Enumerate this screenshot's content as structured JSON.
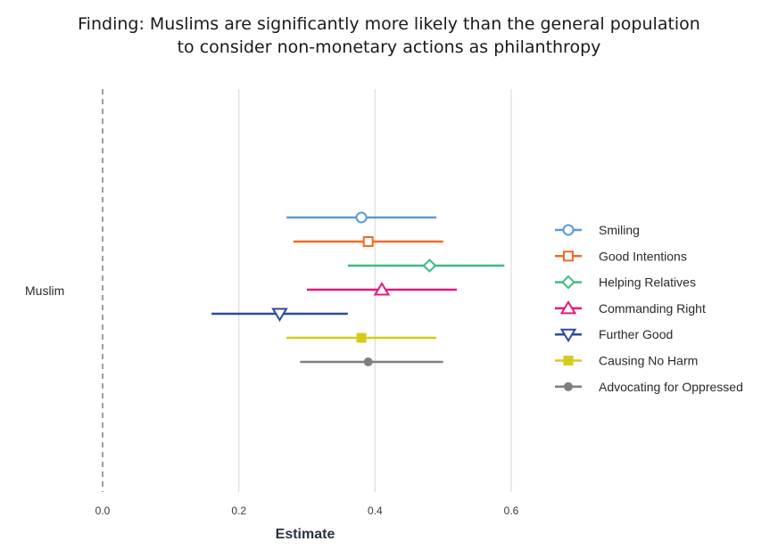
{
  "chart_data": {
    "type": "coefficient-plot",
    "title_lines": [
      "Finding: Muslims are significantly more likely than the general population",
      "to consider non-monetary actions as philanthropy"
    ],
    "xlabel": "Estimate",
    "ylabel": "",
    "category": "Muslim",
    "xlim": [
      0.0,
      0.6
    ],
    "xticks": [
      0.0,
      0.2,
      0.4,
      0.6
    ],
    "xtick_labels": [
      "0.0",
      "0.2",
      "0.4",
      "0.6"
    ],
    "reference_line": 0.0,
    "legend_position": "right",
    "series": [
      {
        "name": "Smiling",
        "estimate": 0.38,
        "low": 0.27,
        "high": 0.49,
        "color": "#5b9bd5",
        "marker": "circle-open"
      },
      {
        "name": "Good Intentions",
        "estimate": 0.39,
        "low": 0.28,
        "high": 0.5,
        "color": "#ed6b27",
        "marker": "square-open"
      },
      {
        "name": "Helping Relatives",
        "estimate": 0.48,
        "low": 0.36,
        "high": 0.59,
        "color": "#3fbb7f",
        "marker": "diamond-open"
      },
      {
        "name": "Commanding Right",
        "estimate": 0.41,
        "low": 0.3,
        "high": 0.52,
        "color": "#e8177b",
        "marker": "triangle-up-open"
      },
      {
        "name": "Further Good",
        "estimate": 0.26,
        "low": 0.16,
        "high": 0.36,
        "color": "#2e4a9c",
        "marker": "triangle-down-open"
      },
      {
        "name": "Causing No Harm",
        "estimate": 0.38,
        "low": 0.27,
        "high": 0.49,
        "color": "#d6cb1c",
        "marker": "square-filled"
      },
      {
        "name": "Advocating for Oppressed",
        "estimate": 0.39,
        "low": 0.29,
        "high": 0.5,
        "color": "#7f7f7f",
        "marker": "circle-filled"
      }
    ]
  }
}
